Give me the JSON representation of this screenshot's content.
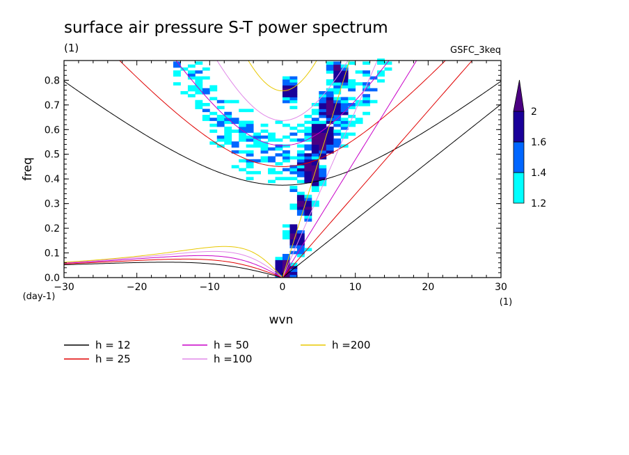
{
  "chart_data": {
    "type": "line",
    "title": "surface air pressure S-T power spectrum",
    "subtitle_left": "(1)",
    "subtitle_right": "GSFC_3keq",
    "xlabel": "wvn",
    "ylabel": "freq",
    "x_unit": "(1)",
    "y_unit": "(day-1)",
    "xlim": [
      -30,
      30
    ],
    "ylim": [
      0,
      0.88
    ],
    "x_ticks": [
      -30,
      -20,
      -10,
      0,
      10,
      20,
      30
    ],
    "y_ticks": [
      0.0,
      0.1,
      0.2,
      0.3,
      0.4,
      0.5,
      0.6,
      0.7,
      0.8
    ],
    "colorbar": {
      "levels": [
        "1.2",
        "1.4",
        "1.6",
        "2"
      ],
      "colors": [
        "#00ffff",
        "#0066ff",
        "#1a0099",
        "#4b0082"
      ]
    },
    "series": [
      {
        "name": "h = 12",
        "equivalent_depth": 12,
        "color": "#000000"
      },
      {
        "name": "h = 25",
        "equivalent_depth": 25,
        "color": "#e00000"
      },
      {
        "name": "h = 50",
        "equivalent_depth": 50,
        "color": "#c800c8"
      },
      {
        "name": "h =100",
        "equivalent_depth": 100,
        "color": "#e088e8"
      },
      {
        "name": "h =200",
        "equivalent_depth": 200,
        "color": "#e8c800"
      }
    ],
    "grid": false,
    "legend_position": "bottom"
  }
}
